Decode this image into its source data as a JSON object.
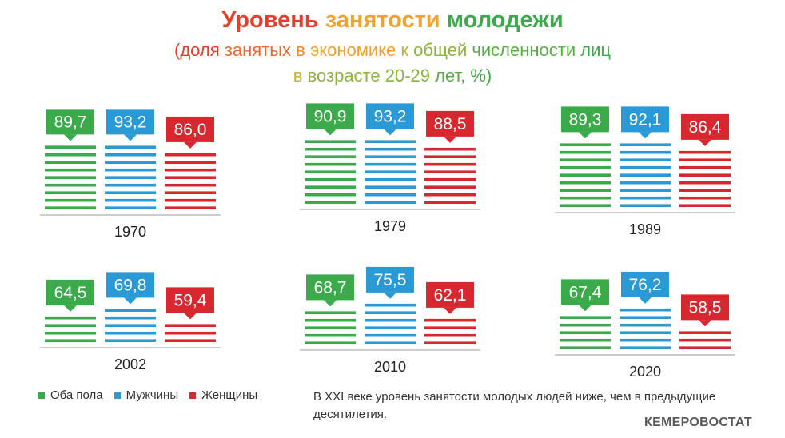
{
  "title_parts": [
    {
      "text": "Уровень",
      "color": "#e53e2a"
    },
    {
      "text": " занятости",
      "color": "#f2a12b"
    },
    {
      "text": " молодежи",
      "color": "#3aaa4a"
    }
  ],
  "subtitle_line1": "(доля занятых в экономике к общей численности лиц",
  "subtitle_line2": "в возрасте 20-29 лет, %)",
  "colors": {
    "both": "#3aaa4a",
    "men": "#2a9ad6",
    "women": "#d7282f"
  },
  "legend": [
    {
      "label": "Оба пола",
      "color": "#3aaa4a"
    },
    {
      "label": "Мужчины",
      "color": "#2a9ad6"
    },
    {
      "label": "Женщины",
      "color": "#d7282f"
    }
  ],
  "note": "В XXI веке уровень занятости молодых людей ниже, чем в предыдущие десятилетия.",
  "source": "КЕМЕРОВОСТАТ",
  "chart_data": {
    "type": "bar",
    "categories": [
      "1970",
      "1979",
      "1989",
      "2002",
      "2010",
      "2020"
    ],
    "series": [
      {
        "name": "Оба пола",
        "values": [
          89.7,
          90.9,
          89.3,
          64.5,
          68.7,
          67.4
        ]
      },
      {
        "name": "Мужчины",
        "values": [
          93.2,
          93.2,
          92.1,
          69.8,
          75.5,
          76.2
        ]
      },
      {
        "name": "Женщины",
        "values": [
          86.0,
          88.5,
          86.4,
          59.4,
          62.1,
          58.5
        ]
      }
    ],
    "value_labels": [
      [
        "89,7",
        "93,2",
        "86,0"
      ],
      [
        "90,9",
        "93,2",
        "88,5"
      ],
      [
        "89,3",
        "92,1",
        "86,4"
      ],
      [
        "64,5",
        "69,8",
        "59,4"
      ],
      [
        "68,7",
        "75,5",
        "62,1"
      ],
      [
        "67,4",
        "76,2",
        "58,5"
      ]
    ],
    "ylim": [
      0,
      100
    ]
  }
}
